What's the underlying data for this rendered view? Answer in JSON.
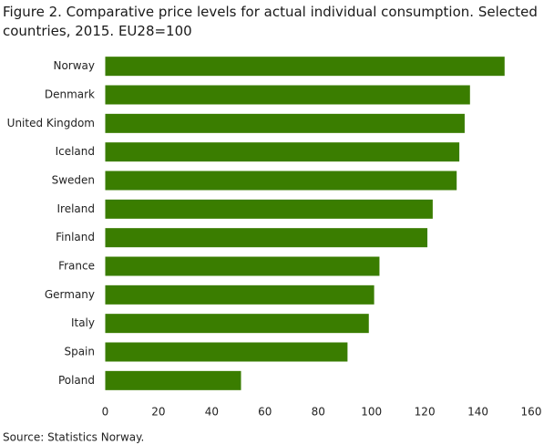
{
  "chart_data": {
    "type": "hbar",
    "title": "Figure 2. Comparative price levels for actual individual consumption. Selected countries, 2015. EU28=100",
    "categories": [
      "Norway",
      "Denmark",
      "United Kingdom",
      "Iceland",
      "Sweden",
      "Ireland",
      "Finland",
      "France",
      "Germany",
      "Italy",
      "Spain",
      "Poland"
    ],
    "values": [
      150,
      137,
      135,
      133,
      132,
      123,
      121,
      103,
      101,
      99,
      91,
      51
    ],
    "color": "#3a7d00",
    "xlim": [
      0,
      160
    ],
    "xticks": [
      0,
      20,
      40,
      60,
      80,
      100,
      120,
      140,
      160
    ],
    "grid": false,
    "source": "Source: Statistics Norway."
  }
}
